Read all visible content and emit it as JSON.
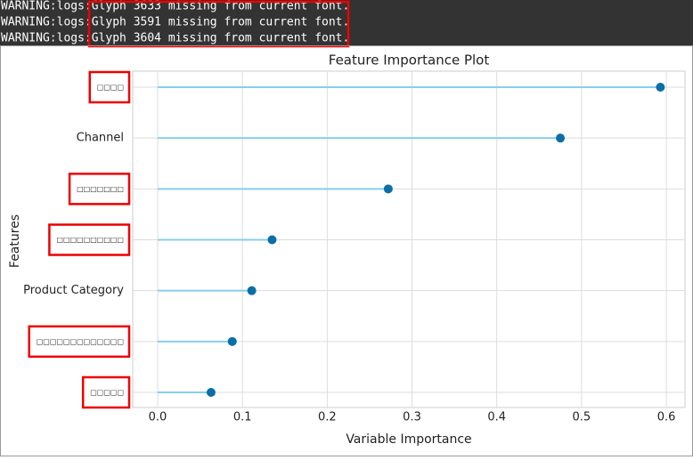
{
  "logs": [
    "WARNING:logs:Glyph 3633 missing from current font.",
    "WARNING:logs:Glyph 3591 missing from current font.",
    "WARNING:logs:Glyph 3604 missing from current font."
  ],
  "chart_data": {
    "type": "lollipop",
    "title": "Feature Importance Plot",
    "x_label": "Variable Importance",
    "y_label": "Features",
    "categories": [
      "□□□□",
      "Channel",
      "□□□□□□□",
      "□□□□□□□□□□",
      "Product Category",
      "□□□□□□□□□□□□□",
      "□□□□□"
    ],
    "values": [
      0.593,
      0.475,
      0.272,
      0.135,
      0.111,
      0.088,
      0.063
    ],
    "stem_color": "#87ceeb",
    "color": "#0a6fa6",
    "xlim": [
      -0.0294,
      0.622
    ],
    "xticks": [
      {
        "value": 0,
        "label": "0.0"
      },
      0.1,
      0.2,
      0.3,
      0.4,
      0.5,
      0.6
    ],
    "grid": true
  }
}
